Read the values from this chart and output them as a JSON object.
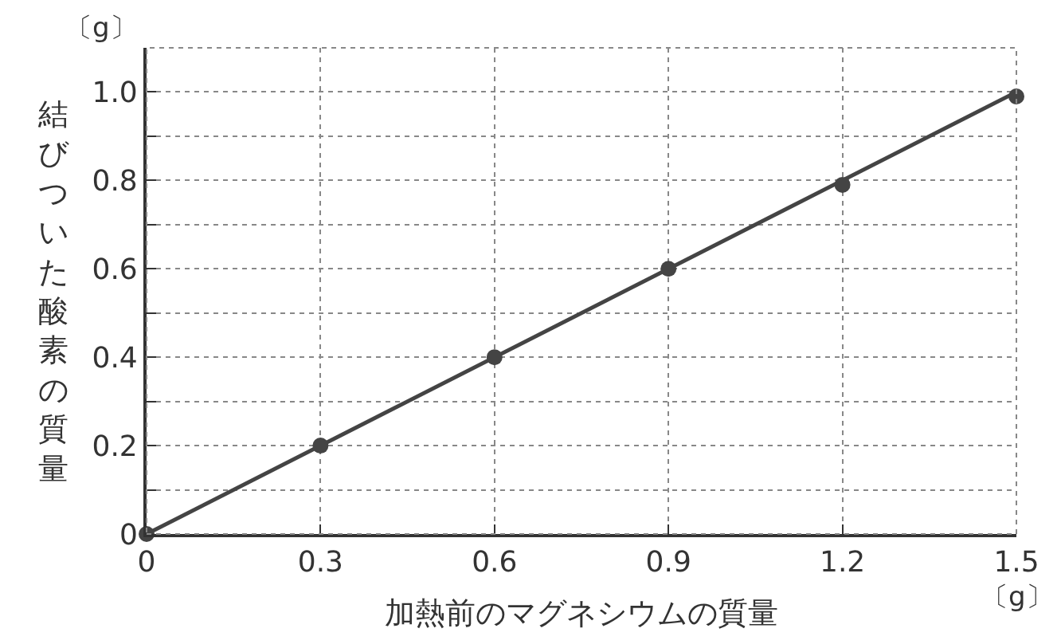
{
  "chart_data": {
    "type": "scatter",
    "xlabel": "加熱前のマグネシウムの質量",
    "ylabel": "結びついた酸素の質量",
    "annotations": [
      "〔g〕",
      "〔g〕"
    ],
    "series": [
      {
        "type": "line",
        "marker": "none",
        "color": "#444444",
        "x": [
          0,
          1.5
        ],
        "values": [
          0,
          1.0
        ]
      },
      {
        "color": "#444444",
        "x": [
          0,
          0.3,
          0.6,
          0.9,
          1.2,
          1.5
        ],
        "values": [
          0,
          0.2,
          0.4,
          0.6,
          0.79,
          0.99
        ]
      }
    ],
    "xlim": [
      0,
      1.5
    ],
    "ylim": [
      0,
      1.1
    ],
    "xticks": [
      0,
      0.3,
      0.6,
      0.9,
      1.2,
      1.5
    ],
    "yticks": [
      0,
      {
        "value": 0.1,
        "label": null
      },
      0.2,
      {
        "value": 0.3,
        "label": null
      },
      0.4,
      {
        "value": 0.5,
        "label": null
      },
      0.6,
      {
        "value": 0.7,
        "label": null
      },
      0.8,
      {
        "value": 0.9,
        "label": null
      },
      {
        "value": 1.0,
        "label": "1.0"
      },
      {
        "value": 1.1,
        "label": null
      }
    ],
    "grid": true,
    "marker": "circle",
    "line_style": "solid"
  }
}
